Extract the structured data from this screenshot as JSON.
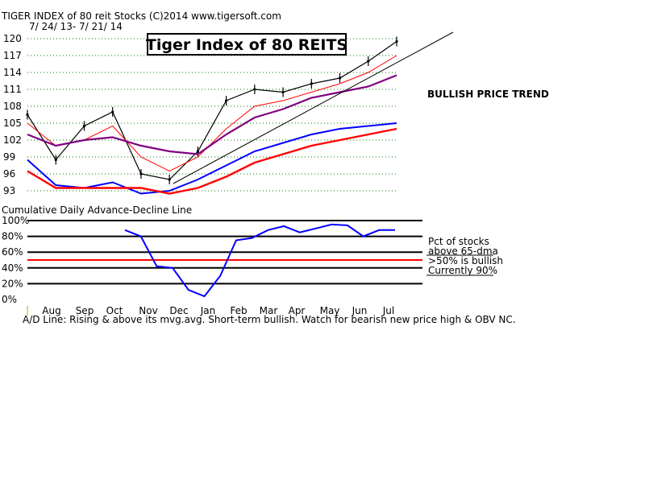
{
  "header": {
    "title": "TIGER INDEX of  80 reit Stocks  (C)2014  www.tigersoft.com",
    "date_range": "7/ 24/ 13- 7/ 21/ 14"
  },
  "top_chart": {
    "boxed_title": "Tiger Index of 80 REITS",
    "trend_note": "BULLISH PRICE TREND"
  },
  "bottom_chart": {
    "title": "Cumulative Daily Advance-Decline Line",
    "note_lines": [
      "Pct of stocks",
      "above 65-dma",
      ">50% is bullish",
      "Currently  90%"
    ],
    "footer": "A/D Line: Rising & above its mvg.avg. Short-term bullish. Watch for bearish new price high & OBV NC."
  },
  "colors": {
    "price_bars": "#000000",
    "ma_thin": "#ff0000",
    "ma_purple": "#800080",
    "ad_line": "#0000ff",
    "ad_ma": "#ff0000",
    "pct_line": "#0000ff",
    "fifty_line": "#ff0000",
    "trendline": "#000000"
  },
  "chart_data": [
    {
      "type": "line",
      "title": "Tiger Index of 80 REITS",
      "y_ticks": [
        120,
        117,
        114,
        111,
        108,
        105,
        102,
        99,
        96,
        93
      ],
      "ylim": [
        93,
        120
      ],
      "x_ticks": [
        "Aug",
        "Sep",
        "Oct",
        "Nov",
        "Dec",
        "Jan",
        "Feb",
        "Mar",
        "Apr",
        "May",
        "Jun",
        "Jul"
      ],
      "x": [
        "Jul 24",
        "Aug",
        "Sep",
        "Oct",
        "Nov",
        "Dec",
        "Jan",
        "Feb",
        "Mar",
        "Apr",
        "May",
        "Jun",
        "Jul",
        "Jul 21"
      ],
      "series": [
        {
          "name": "",
          "values": [
            106.5,
            98.5,
            104.5,
            107,
            96,
            95,
            100,
            109,
            111,
            110.5,
            112,
            113,
            116,
            119.5
          ]
        },
        {
          "name": "",
          "values": [
            105,
            101,
            102,
            104.5,
            99,
            96.5,
            99,
            104,
            108,
            109,
            110.5,
            112,
            114,
            117
          ]
        },
        {
          "name": "",
          "values": [
            103,
            101,
            102,
            102.5,
            101,
            100,
            99.5,
            103,
            106,
            107.5,
            109.5,
            110.5,
            111.5,
            113.5
          ]
        },
        {
          "name": "",
          "values": [
            98.5,
            94,
            93.5,
            94.5,
            92.5,
            93,
            95,
            97.5,
            100,
            101.5,
            103,
            104,
            104.5,
            105
          ]
        },
        {
          "name": "",
          "values": [
            96.5,
            93.5,
            93.5,
            93.5,
            93.5,
            92.5,
            93.5,
            95.5,
            98,
            99.5,
            101,
            102,
            103,
            104
          ]
        }
      ]
    },
    {
      "type": "line",
      "title": "Cumulative Daily Advance-Decline Line",
      "y_ticks": [
        "100%",
        "80%",
        "60%",
        "40%",
        "20%",
        "0%"
      ],
      "ylim": [
        0,
        100
      ],
      "x_ticks": [
        "Aug",
        "Sep",
        "Oct",
        "Nov",
        "Dec",
        "Jan",
        "Feb",
        "Mar",
        "Apr",
        "May",
        "Jun",
        "Jul"
      ],
      "x": [
        "Oct",
        "Oct",
        "Nov",
        "Nov",
        "Dec",
        "Dec",
        "Jan",
        "Jan",
        "Feb",
        "Feb",
        "Mar",
        "Apr",
        "May",
        "May",
        "Jun",
        "Jun",
        "Jul",
        "Jul"
      ],
      "series": [
        {
          "name": "",
          "values": [
            88,
            80,
            42,
            40,
            12,
            4,
            30,
            75,
            78,
            88,
            93,
            85,
            90,
            95,
            94,
            80,
            88,
            88
          ]
        }
      ],
      "reference_line": 50
    }
  ]
}
